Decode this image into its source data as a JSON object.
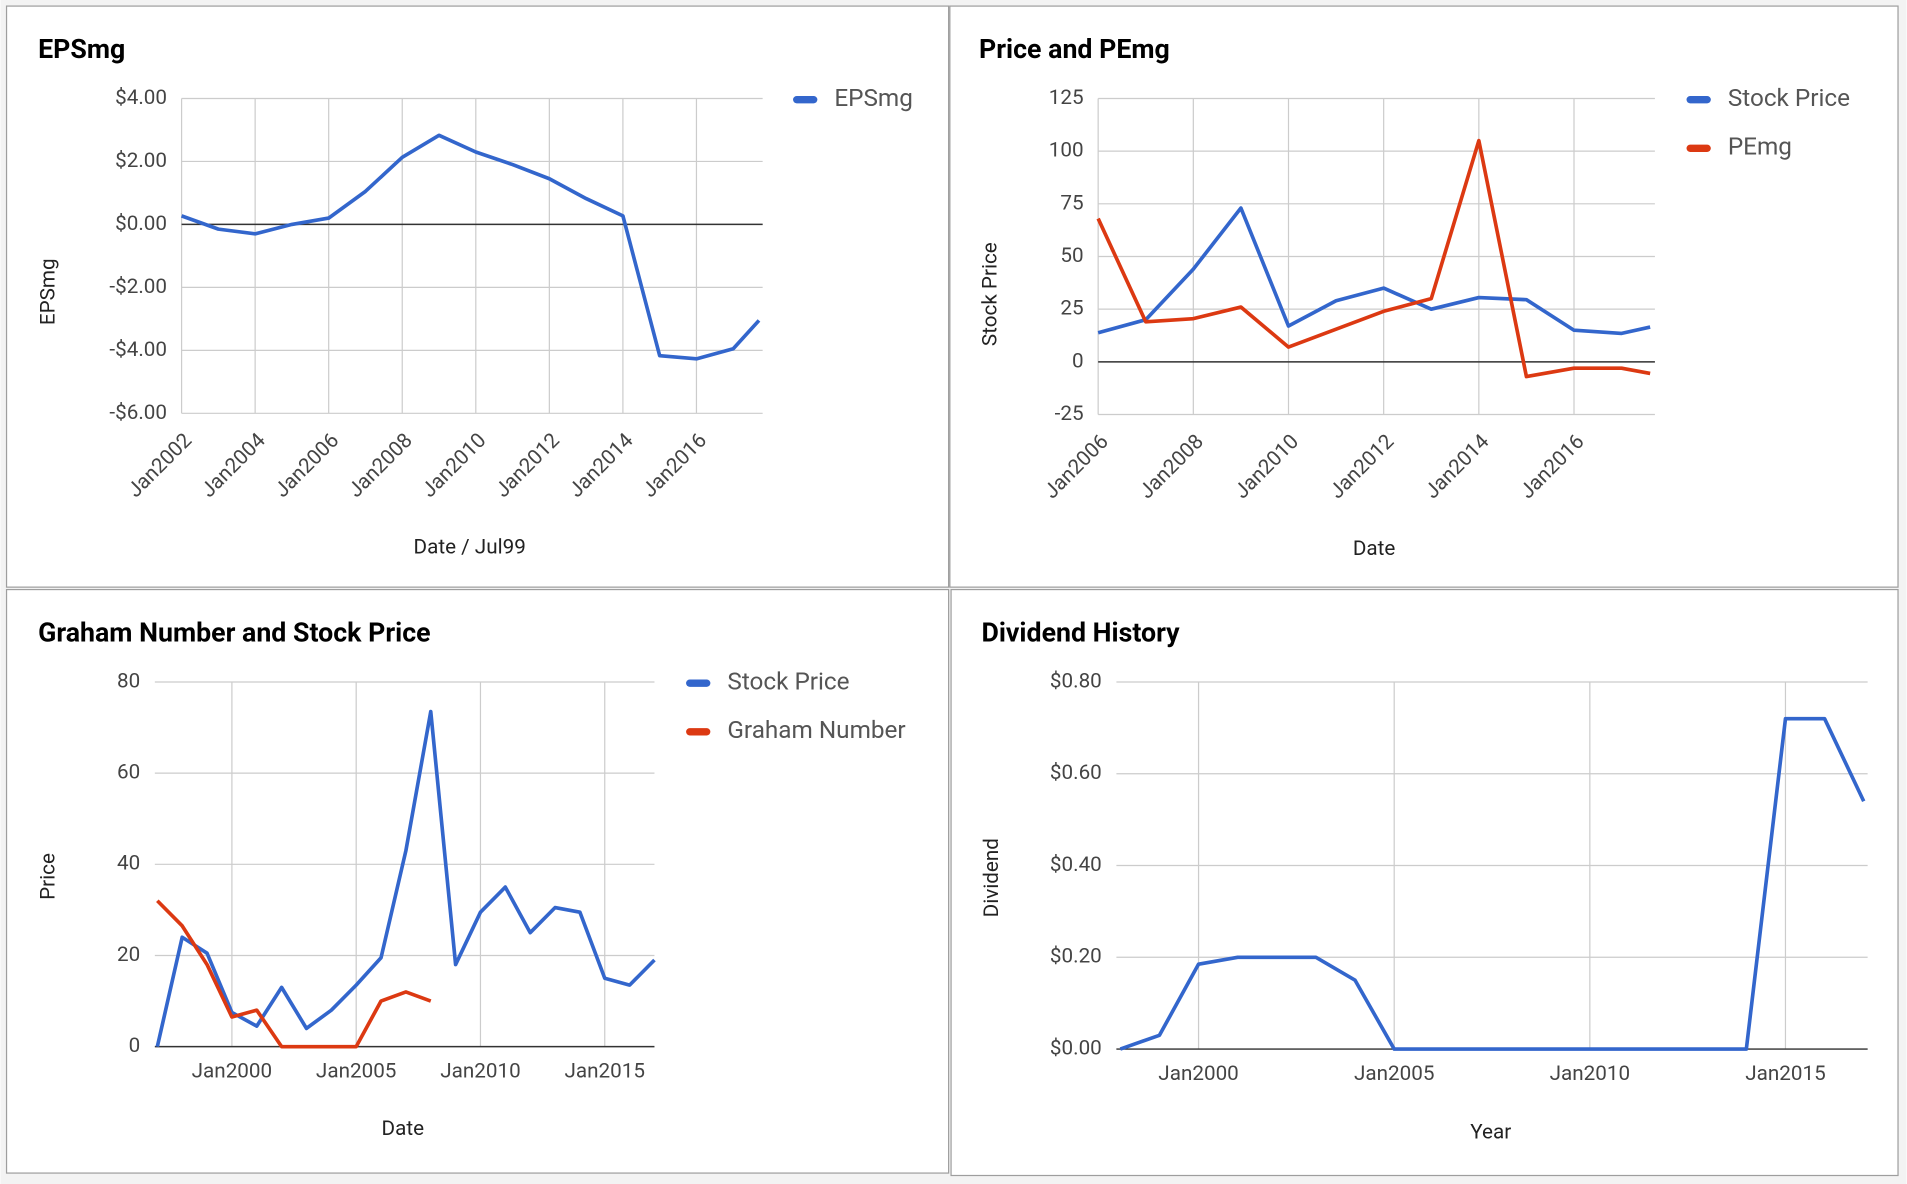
{
  "chart_data": [
    {
      "type": "line",
      "title": "EPSmg",
      "x_label": "Date / Jul99",
      "y_label": "EPSmg",
      "grid": true,
      "legend": "right",
      "x": [
        2002,
        2003,
        2004,
        2005,
        2006,
        2007,
        2008,
        2009,
        2010,
        2011,
        2012,
        2013,
        2014,
        2015,
        2016,
        2017,
        2017.7
      ],
      "series": [
        {
          "name": "EPSmg",
          "color": "#3366cc",
          "values": [
            0.27,
            -0.15,
            -0.3,
            0.0,
            0.2,
            1.05,
            2.13,
            2.83,
            2.3,
            1.9,
            1.45,
            0.82,
            0.27,
            -4.17,
            -4.27,
            -3.95,
            -3.05
          ]
        }
      ],
      "xlim": [
        2002,
        2017.8
      ],
      "xticks": [
        {
          "value": 2002,
          "label": "Jan2002"
        },
        {
          "value": 2004,
          "label": "Jan2004"
        },
        {
          "value": 2006,
          "label": "Jan2006"
        },
        {
          "value": 2008,
          "label": "Jan2008"
        },
        {
          "value": 2010,
          "label": "Jan2010"
        },
        {
          "value": 2012,
          "label": "Jan2012"
        },
        {
          "value": 2014,
          "label": "Jan2014"
        },
        {
          "value": 2016,
          "label": "Jan2016"
        }
      ],
      "ylim": [
        -6,
        4
      ],
      "yticks": [
        {
          "value": -6,
          "label": "-$6.00"
        },
        {
          "value": -4,
          "label": "-$4.00"
        },
        {
          "value": -2,
          "label": "-$2.00"
        },
        {
          "value": 0,
          "label": "$0.00"
        },
        {
          "value": 2,
          "label": "$2.00"
        },
        {
          "value": 4,
          "label": "$4.00"
        }
      ]
    },
    {
      "type": "line",
      "title": "Price and PEmg",
      "x_label": "Date",
      "y_label": "Stock Price",
      "grid": true,
      "legend": "right",
      "x": [
        2006,
        2007,
        2008,
        2009,
        2010,
        2011,
        2012,
        2013,
        2014,
        2015,
        2016,
        2017,
        2017.6
      ],
      "series": [
        {
          "name": "Stock Price",
          "color": "#3366cc",
          "values": [
            13.8,
            20,
            44,
            73,
            17,
            29,
            35,
            25,
            30.5,
            29.5,
            15,
            13.5,
            16.5
          ]
        },
        {
          "name": "PEmg",
          "color": "#dc3912",
          "values": [
            68,
            19,
            20.5,
            26,
            7,
            15.5,
            24,
            30,
            105,
            -7,
            -3,
            -3,
            -5.5
          ]
        }
      ],
      "xlim": [
        2006,
        2017.7
      ],
      "xticks": [
        {
          "value": 2006,
          "label": "Jan2006"
        },
        {
          "value": 2008,
          "label": "Jan2008"
        },
        {
          "value": 2010,
          "label": "Jan2010"
        },
        {
          "value": 2012,
          "label": "Jan2012"
        },
        {
          "value": 2014,
          "label": "Jan2014"
        },
        {
          "value": 2016,
          "label": "Jan2016"
        }
      ],
      "ylim": [
        -25,
        125
      ],
      "yticks": [
        -25,
        0,
        25,
        50,
        75,
        100,
        125
      ]
    },
    {
      "type": "line",
      "title": "Graham Number and Stock Price",
      "x_label": "Date",
      "y_label": "Price",
      "grid": true,
      "legend": "right",
      "x": [
        1997,
        1998,
        1999,
        2000,
        2001,
        2002,
        2003,
        2004,
        2005,
        2006,
        2007,
        2008,
        2009,
        2010,
        2011,
        2012,
        2013,
        2014,
        2015,
        2016,
        2017
      ],
      "series": [
        {
          "name": "Stock Price",
          "color": "#3366cc",
          "values": [
            0,
            24,
            20.5,
            7.5,
            4.5,
            13,
            4,
            8,
            13.5,
            19.5,
            43,
            73.5,
            18,
            29.5,
            35,
            25,
            30.5,
            29.5,
            15,
            13.5,
            19
          ]
        },
        {
          "name": "Graham Number",
          "color": "#dc3912",
          "values": [
            32,
            26.5,
            18,
            6.5,
            8,
            0,
            0,
            0,
            0,
            10,
            12,
            10,
            null,
            null,
            null,
            null,
            null,
            null,
            null,
            null,
            null
          ]
        }
      ],
      "xlim": [
        1996.9,
        2017
      ],
      "xticks": [
        {
          "value": 2000,
          "label": "Jan2000"
        },
        {
          "value": 2005,
          "label": "Jan2005"
        },
        {
          "value": 2010,
          "label": "Jan2010"
        },
        {
          "value": 2015,
          "label": "Jan2015"
        }
      ],
      "ylim": [
        0,
        80
      ],
      "yticks": [
        0,
        20,
        40,
        60,
        80
      ]
    },
    {
      "type": "line",
      "title": "Dividend History",
      "x_label": "Year",
      "y_label": "Dividend",
      "grid": true,
      "legend": "none",
      "x": [
        1998,
        1999,
        2000,
        2001,
        2002,
        2003,
        2004,
        2005,
        2006,
        2007,
        2008,
        2009,
        2010,
        2011,
        2012,
        2013,
        2014,
        2015,
        2016,
        2017
      ],
      "series": [
        {
          "color": "#3366cc",
          "values": [
            0,
            0.03,
            0.185,
            0.2,
            0.2,
            0.2,
            0.15,
            0,
            0,
            0,
            0,
            0,
            0,
            0,
            0,
            0,
            0,
            0.72,
            0.72,
            0.54
          ]
        }
      ],
      "xlim": [
        1997.9,
        2017.1
      ],
      "xticks": [
        {
          "value": 2000,
          "label": "Jan2000"
        },
        {
          "value": 2005,
          "label": "Jan2005"
        },
        {
          "value": 2010,
          "label": "Jan2010"
        },
        {
          "value": 2015,
          "label": "Jan2015"
        }
      ],
      "ylim": [
        0,
        0.8
      ],
      "yticks": [
        {
          "value": 0,
          "label": "$0.00"
        },
        {
          "value": 0.2,
          "label": "$0.20"
        },
        {
          "value": 0.4,
          "label": "$0.40"
        },
        {
          "value": 0.6,
          "label": "$0.60"
        },
        {
          "value": 0.8,
          "label": "$0.80"
        }
      ]
    }
  ]
}
